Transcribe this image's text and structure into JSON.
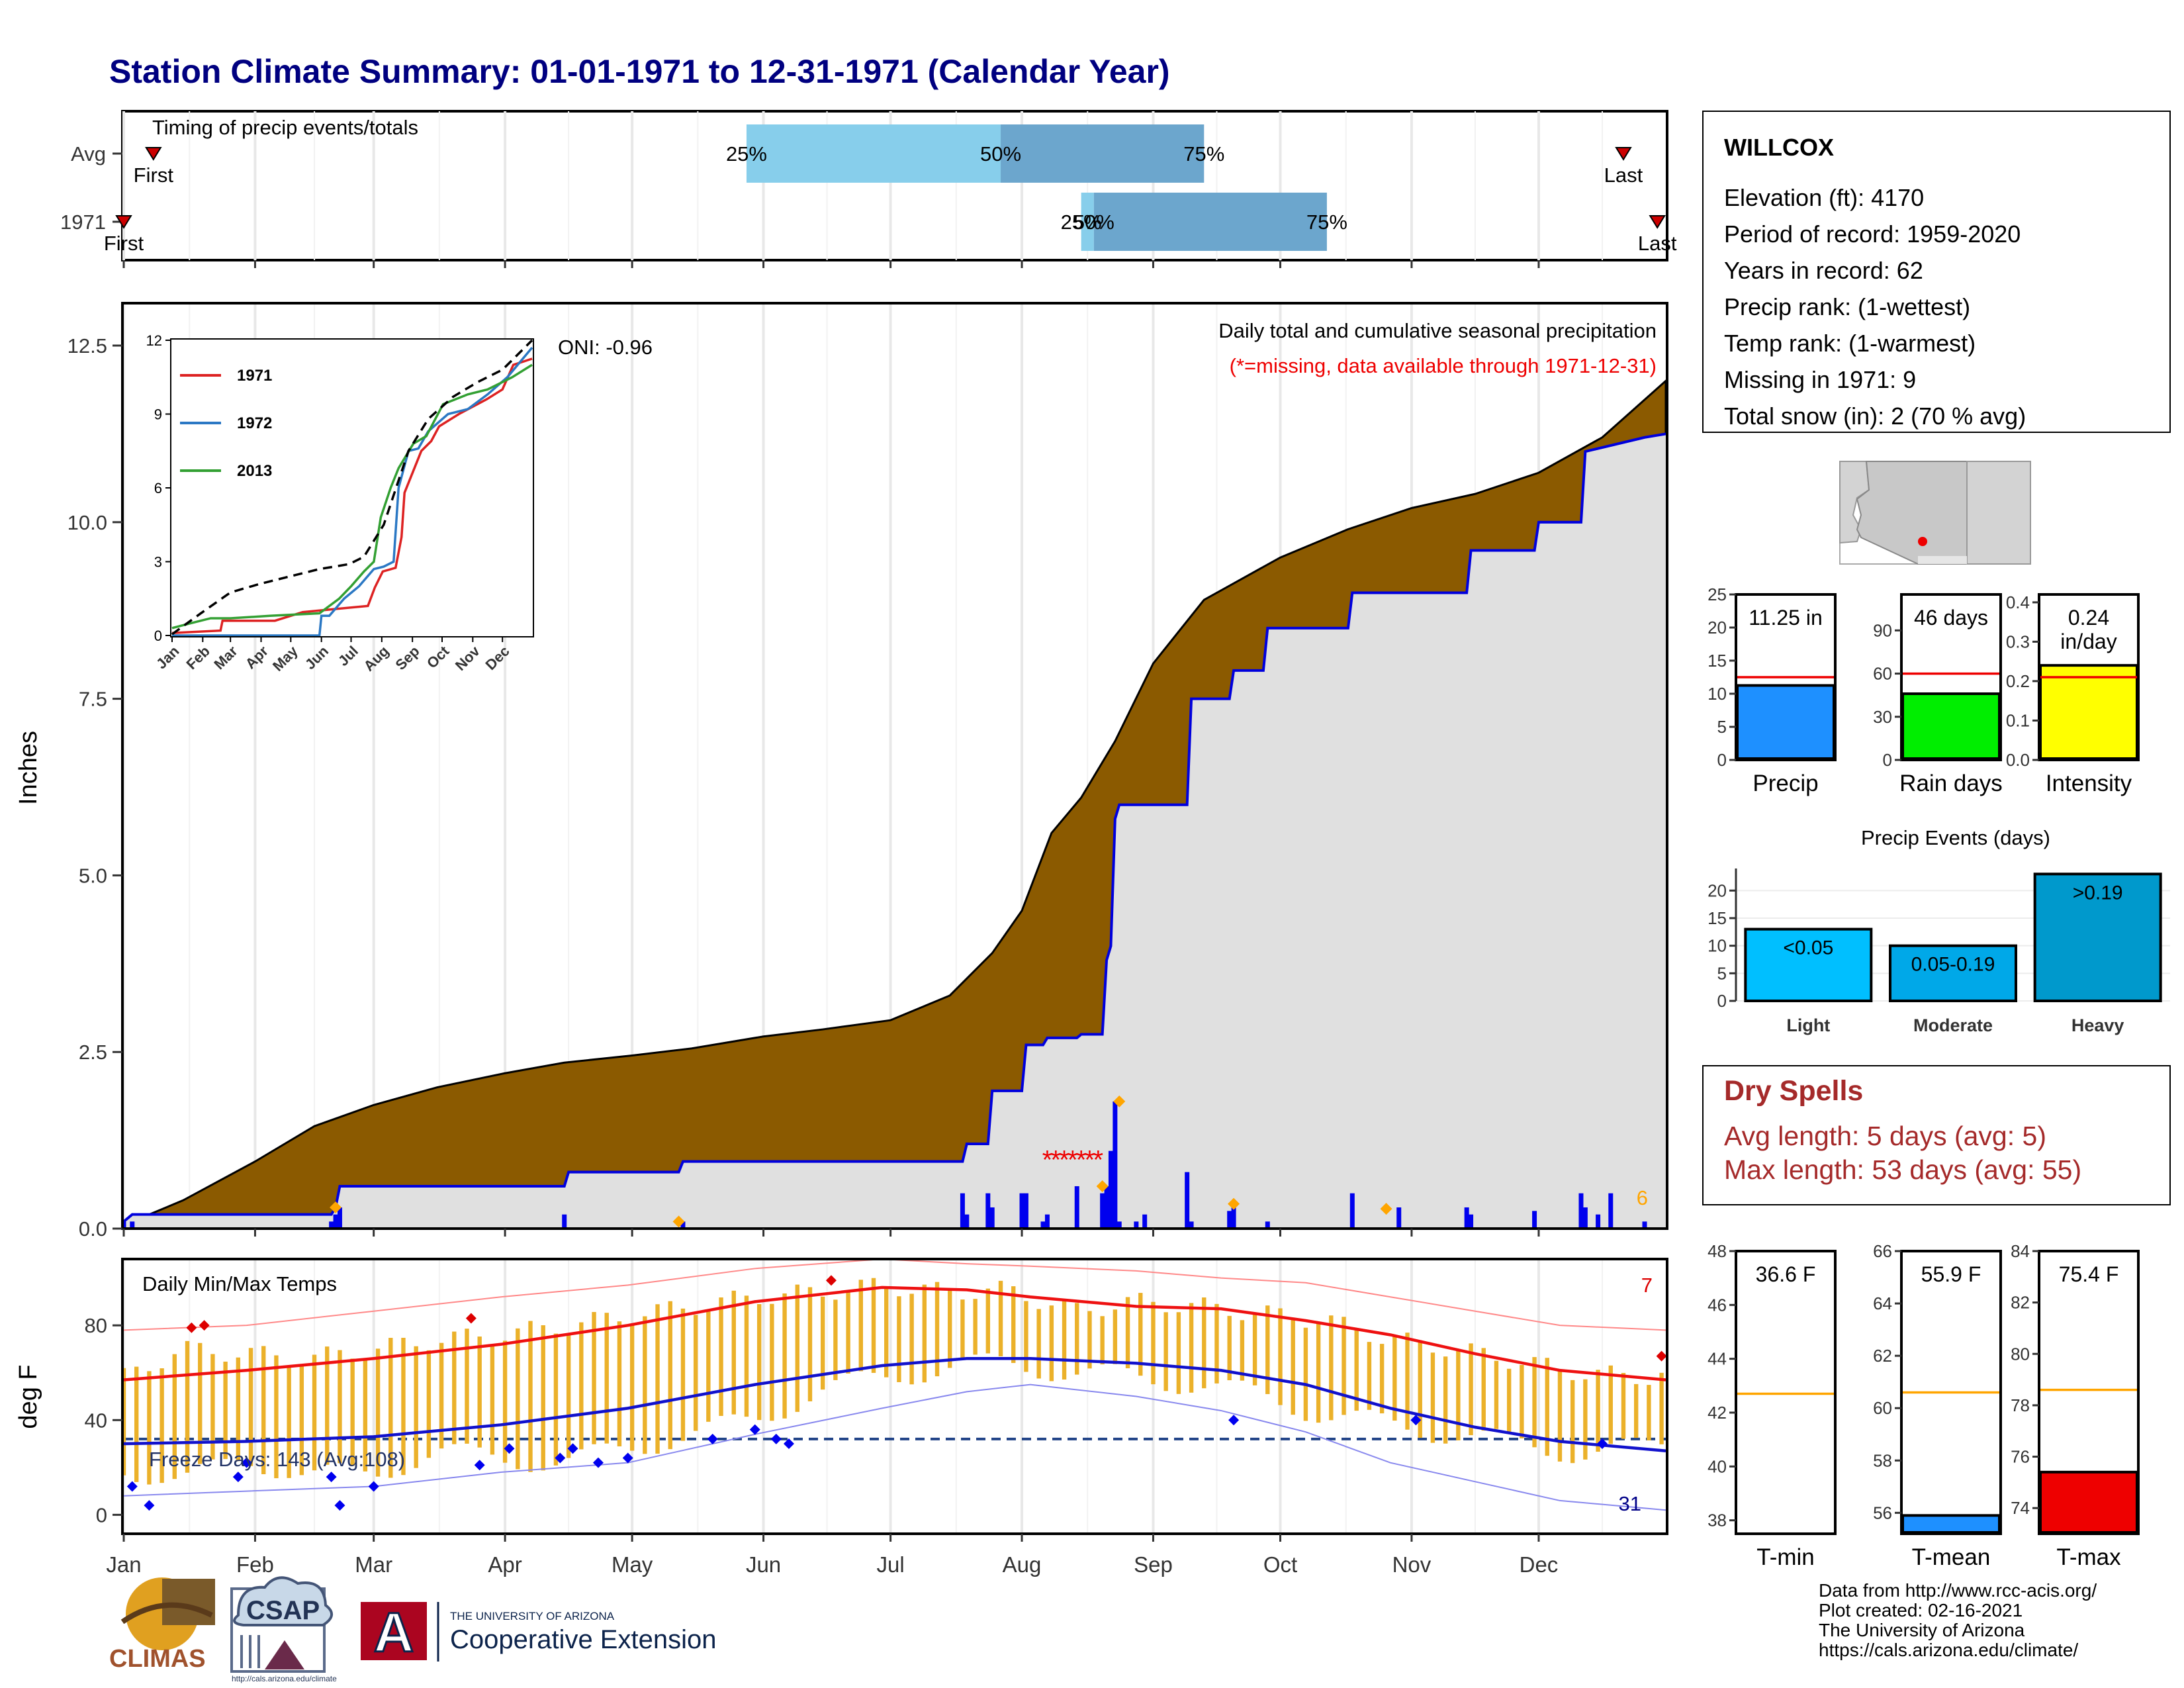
{
  "page": {
    "title": "Station Climate Summary: 01-01-1971 to 12-31-1971 (Calendar Year)"
  },
  "months": [
    "Jan",
    "Feb",
    "Mar",
    "Apr",
    "May",
    "Jun",
    "Jul",
    "Aug",
    "Sep",
    "Oct",
    "Nov",
    "Dec"
  ],
  "timing_panel": {
    "title": "Timing of precip events/totals",
    "rows": [
      {
        "label": "Avg",
        "first_label": "First",
        "last_label": "Last",
        "first_day": 8,
        "last_day": 355,
        "p25_day": 148,
        "p50_day": 208,
        "p75_day": 256,
        "p25_label": "25%",
        "p50_label": "50%",
        "p75_label": "75%"
      },
      {
        "label": "1971",
        "first_label": "First",
        "last_label": "Last",
        "first_day": 1,
        "last_day": 363,
        "p25_day": 227,
        "p50_day": 230,
        "p75_day": 285,
        "p25_label": "25%",
        "p50_label": "50%",
        "p75_label": "75%"
      }
    ],
    "colors": {
      "band_light": "#87ceeb",
      "band_dark": "#6ca6cd",
      "marker": "#cc0000"
    }
  },
  "chart_data": [
    {
      "type": "area",
      "name": "cumulative-precip",
      "title": "Daily total and cumulative seasonal precipitation",
      "subtitle": "(*=missing, data available through 1971-12-31)",
      "oni_label": "ONI: -0.96",
      "ylabel": "Inches",
      "ylim": [
        0,
        13.1
      ],
      "yticks": [
        0.0,
        2.5,
        5.0,
        7.5,
        10.0,
        12.5
      ],
      "ytick_labels": [
        "0.0",
        "2.5",
        "5.0",
        "7.5",
        "10.0",
        "12.5"
      ],
      "xlim_day": [
        1,
        365
      ],
      "avg_cumulative": {
        "x_day": [
          1,
          15,
          32,
          46,
          60,
          75,
          91,
          105,
          121,
          135,
          152,
          166,
          182,
          196,
          206,
          213,
          220,
          227,
          235,
          244,
          256,
          274,
          290,
          305,
          320,
          335,
          350,
          365
        ],
        "y": [
          0.05,
          0.4,
          0.95,
          1.45,
          1.75,
          2.0,
          2.2,
          2.35,
          2.45,
          2.55,
          2.72,
          2.82,
          2.95,
          3.3,
          3.9,
          4.5,
          5.6,
          6.1,
          6.9,
          8.0,
          8.9,
          9.5,
          9.9,
          10.2,
          10.4,
          10.7,
          11.2,
          12.0
        ]
      },
      "cum_1971": {
        "x_day": [
          1,
          3,
          50,
          51,
          52,
          105,
          106,
          132,
          133,
          199,
          200,
          205,
          206,
          213,
          214,
          218,
          219,
          226,
          227,
          232,
          233,
          234,
          235,
          236,
          252,
          253,
          262,
          263,
          270,
          271,
          290,
          291,
          318,
          319,
          334,
          335,
          345,
          346,
          360,
          365
        ],
        "y": [
          0.1,
          0.2,
          0.2,
          0.3,
          0.6,
          0.6,
          0.8,
          0.8,
          0.95,
          0.95,
          1.2,
          1.2,
          1.95,
          1.95,
          2.6,
          2.6,
          2.7,
          2.7,
          2.75,
          2.75,
          3.8,
          4.0,
          5.8,
          6.0,
          6.0,
          7.5,
          7.5,
          7.9,
          7.9,
          8.5,
          8.5,
          9.0,
          9.0,
          9.6,
          9.6,
          10.0,
          10.0,
          11.0,
          11.2,
          11.25
        ]
      },
      "daily_bars": {
        "x_day": [
          1,
          3,
          50,
          51,
          52,
          105,
          133,
          199,
          200,
          205,
          206,
          213,
          214,
          218,
          219,
          226,
          232,
          233,
          234,
          235,
          236,
          240,
          242,
          252,
          253,
          262,
          263,
          271,
          291,
          302,
          318,
          319,
          334,
          345,
          346,
          349,
          352,
          360
        ],
        "values": [
          0.1,
          0.1,
          0.1,
          0.2,
          0.3,
          0.2,
          0.1,
          0.5,
          0.2,
          0.5,
          0.3,
          0.5,
          0.5,
          0.1,
          0.2,
          0.6,
          0.5,
          0.6,
          1.1,
          1.8,
          0.1,
          0.1,
          0.2,
          0.8,
          0.1,
          0.25,
          0.3,
          0.1,
          0.5,
          0.3,
          0.3,
          0.2,
          0.25,
          0.5,
          0.3,
          0.2,
          0.5,
          0.1
        ]
      },
      "daily_markers": {
        "x_day": [
          51,
          132,
          232,
          236,
          263,
          299
        ],
        "y": [
          0.3,
          0.1,
          0.6,
          1.8,
          0.35,
          0.28
        ]
      },
      "missing_marks": {
        "x_day": [
          219,
          221,
          223,
          225,
          227,
          229,
          231
        ],
        "y": 1.0
      },
      "corner_value": "6",
      "colors": {
        "cum_fill": "#e0e0e0",
        "cum_line": "#0000dd",
        "avg_fill": "#8b5a00",
        "bar": "#0000ee",
        "marker": "#ffa500",
        "missing": "#ee0000"
      }
    },
    {
      "type": "line",
      "name": "inset-cumulative",
      "ylim": [
        0,
        12
      ],
      "yticks": [
        0,
        3,
        6,
        9,
        12
      ],
      "ytick_labels": [
        "0",
        "3",
        "6",
        "9",
        "12"
      ],
      "series": [
        {
          "name": "1971",
          "color": "#dd2222",
          "x_day": [
            1,
            50,
            52,
            105,
            133,
            199,
            206,
            214,
            227,
            233,
            236,
            253,
            263,
            271,
            291,
            319,
            335,
            346,
            365
          ],
          "y": [
            0.1,
            0.2,
            0.6,
            0.6,
            0.95,
            1.2,
            1.95,
            2.6,
            2.75,
            4.0,
            5.8,
            7.5,
            7.9,
            8.5,
            9.0,
            9.6,
            10.0,
            11.0,
            11.25
          ]
        },
        {
          "name": "1972",
          "color": "#2b78c4",
          "x_day": [
            1,
            150,
            152,
            160,
            175,
            190,
            205,
            215,
            225,
            230,
            240,
            250,
            260,
            280,
            300,
            320,
            340,
            365
          ],
          "y": [
            0.0,
            0.0,
            0.8,
            0.8,
            1.5,
            2.0,
            2.7,
            2.8,
            3.0,
            6.0,
            7.5,
            7.6,
            8.3,
            9.0,
            9.2,
            9.8,
            10.5,
            11.7
          ]
        },
        {
          "name": "2013",
          "color": "#33a033",
          "x_day": [
            1,
            20,
            40,
            60,
            100,
            150,
            170,
            182,
            195,
            205,
            212,
            222,
            230,
            245,
            258,
            275,
            300,
            320,
            345,
            365
          ],
          "y": [
            0.3,
            0.5,
            0.7,
            0.7,
            0.8,
            0.9,
            1.5,
            2.0,
            2.6,
            3.0,
            4.8,
            6.0,
            6.8,
            7.8,
            8.1,
            9.4,
            9.8,
            10.0,
            10.5,
            11.0
          ]
        }
      ],
      "avg": {
        "x_day": [
          1,
          30,
          60,
          90,
          120,
          150,
          180,
          195,
          215,
          240,
          260,
          285,
          310,
          335,
          365
        ],
        "y": [
          0.05,
          0.9,
          1.75,
          2.1,
          2.4,
          2.7,
          2.9,
          3.2,
          4.5,
          7.5,
          8.8,
          9.7,
          10.3,
          10.8,
          12.0
        ]
      }
    },
    {
      "type": "line",
      "name": "daily-temps",
      "title": "Daily Min/Max Temps",
      "ylabel": "deg F",
      "ylim": [
        -8,
        108
      ],
      "yticks": [
        0,
        40,
        80
      ],
      "ytick_labels": [
        "0",
        "40",
        "80"
      ],
      "freeze_label": "Freeze Days: 143 (Avg:108)",
      "freeze_line": 32,
      "max_record_count": "7",
      "min_record_count": "31",
      "normal_max": {
        "x_day": [
          1,
          30,
          60,
          90,
          120,
          150,
          180,
          200,
          215,
          240,
          260,
          280,
          300,
          320,
          340,
          365
        ],
        "y": [
          57,
          61,
          66,
          72,
          80,
          90,
          96,
          95,
          92,
          88,
          87,
          82,
          76,
          68,
          61,
          57
        ]
      },
      "normal_min": {
        "x_day": [
          1,
          30,
          60,
          90,
          120,
          150,
          180,
          200,
          215,
          240,
          260,
          280,
          300,
          320,
          340,
          365
        ],
        "y": [
          30,
          31,
          33,
          38,
          45,
          55,
          63,
          66,
          66,
          64,
          61,
          55,
          45,
          37,
          31,
          27
        ]
      },
      "record_max": {
        "x_day": [
          1,
          30,
          60,
          90,
          120,
          150,
          180,
          200,
          215,
          240,
          260,
          280,
          300,
          320,
          340,
          365
        ],
        "y": [
          78,
          80,
          86,
          92,
          97,
          104,
          108,
          106,
          105,
          103,
          100,
          98,
          92,
          86,
          80,
          78
        ]
      },
      "record_min": {
        "x_day": [
          1,
          30,
          60,
          90,
          120,
          150,
          180,
          200,
          215,
          240,
          260,
          280,
          300,
          320,
          340,
          365
        ],
        "y": [
          8,
          10,
          12,
          18,
          22,
          34,
          45,
          52,
          55,
          50,
          44,
          35,
          22,
          14,
          6,
          2
        ]
      },
      "obs_high": {
        "x_day": [
          1,
          15,
          30,
          45,
          60,
          75,
          90,
          105,
          120,
          135,
          150,
          165,
          180,
          195,
          210,
          225,
          240,
          255,
          270,
          285,
          300,
          315,
          330,
          345,
          360,
          365
        ],
        "y": [
          58,
          70,
          68,
          66,
          70,
          74,
          76,
          80,
          84,
          88,
          92,
          94,
          97,
          94,
          95,
          86,
          90,
          88,
          85,
          82,
          74,
          70,
          65,
          60,
          58,
          60
        ]
      },
      "obs_low": {
        "x_day": [
          1,
          15,
          30,
          45,
          60,
          75,
          90,
          105,
          120,
          135,
          150,
          165,
          180,
          195,
          210,
          225,
          240,
          255,
          270,
          285,
          300,
          315,
          330,
          345,
          360,
          365
        ],
        "y": [
          20,
          14,
          24,
          16,
          18,
          26,
          24,
          22,
          28,
          34,
          40,
          52,
          58,
          62,
          64,
          60,
          58,
          55,
          50,
          42,
          38,
          34,
          30,
          26,
          28,
          30
        ]
      },
      "record_high_days": {
        "x_day": [
          17,
          20,
          83,
          168,
          364
        ],
        "y": [
          79,
          80,
          83,
          99,
          67
        ]
      },
      "record_low_days": {
        "x_day": [
          3,
          7,
          28,
          30,
          50,
          52,
          60,
          85,
          92,
          104,
          107,
          113,
          120,
          140,
          150,
          155,
          158,
          263,
          306,
          350
        ],
        "y": [
          12,
          4,
          16,
          22,
          16,
          4,
          12,
          21,
          28,
          24,
          28,
          22,
          24,
          32,
          36,
          32,
          30,
          40,
          40,
          30
        ]
      },
      "colors": {
        "bars": "#ebb12a",
        "normal_max": "#ee1111",
        "normal_min": "#1111cc",
        "record_max": "#ff8888",
        "record_min": "#8888ee",
        "freeze": "#224488",
        "record_marker_high": "#dd0000",
        "record_marker_low": "#0000ee"
      }
    },
    {
      "type": "bar",
      "name": "precip-summary-bars",
      "panels": [
        {
          "label": "Precip",
          "value": 11.25,
          "value_label": "11.25 in",
          "normal": 12.5,
          "ylim": [
            0,
            25
          ],
          "yticks": [
            0,
            5,
            10,
            15,
            20,
            25
          ],
          "ytick_labels": [
            "0",
            "5",
            "10",
            "15",
            "20",
            "25"
          ],
          "color": "#1e90ff"
        },
        {
          "label": "Rain days",
          "value": 46,
          "value_label": "46 days",
          "normal": 60,
          "ylim": [
            0,
            115
          ],
          "yticks": [
            0,
            30,
            60,
            90
          ],
          "ytick_labels": [
            "0",
            "30",
            "60",
            "90"
          ],
          "color": "#00ee00"
        },
        {
          "label": "Intensity",
          "value": 0.24,
          "value_label": "0.24 in/day",
          "normal": 0.21,
          "ylim": [
            0,
            0.42
          ],
          "yticks": [
            0.0,
            0.1,
            0.2,
            0.3,
            0.4
          ],
          "ytick_labels": [
            "0.0",
            "0.1",
            "0.2",
            "0.3",
            "0.4"
          ],
          "color": "#ffff00"
        }
      ]
    },
    {
      "type": "bar",
      "name": "precip-events",
      "title": "Precip Events (days)",
      "categories": [
        "Light",
        "Moderate",
        "Heavy"
      ],
      "values": [
        13,
        10,
        23
      ],
      "bar_labels": [
        "<0.05",
        "0.05-0.19",
        ">0.19"
      ],
      "ylim": [
        0,
        24
      ],
      "yticks": [
        0,
        5,
        10,
        15,
        20
      ],
      "ytick_labels": [
        "0",
        "5",
        "10",
        "15",
        "20"
      ],
      "colors": [
        "#00bfff",
        "#00a8e8",
        "#0099cc"
      ]
    },
    {
      "type": "bar",
      "name": "temp-summary-bars",
      "panels": [
        {
          "label": "T-min",
          "value": 36.6,
          "value_label": "36.6 F",
          "normal": 42.7,
          "ylim": [
            37.5,
            48
          ],
          "yticks": [
            38,
            40,
            42,
            44,
            46,
            48
          ],
          "ytick_labels": [
            "38",
            "40",
            "42",
            "44",
            "46",
            "48"
          ],
          "color": "#aaaaaa"
        },
        {
          "label": "T-mean",
          "value": 55.9,
          "value_label": "55.9 F",
          "normal": 60.6,
          "ylim": [
            55.2,
            66
          ],
          "yticks": [
            56,
            58,
            60,
            62,
            64,
            66
          ],
          "ytick_labels": [
            "56",
            "58",
            "60",
            "62",
            "64",
            "66"
          ],
          "color": "#1e90ff"
        },
        {
          "label": "T-max",
          "value": 75.4,
          "value_label": "75.4 F",
          "normal": 78.6,
          "ylim": [
            73,
            84
          ],
          "yticks": [
            74,
            76,
            78,
            80,
            82,
            84
          ],
          "ytick_labels": [
            "74",
            "76",
            "78",
            "80",
            "82",
            "84"
          ],
          "color": "#ee0000"
        }
      ],
      "normal_color": "#ffa500"
    }
  ],
  "station": {
    "name": "WILLCOX",
    "lines": [
      "Elevation (ft): 4170",
      "Period of record: 1959-2020",
      "Years in record: 62",
      "Precip rank:  (1-wettest)",
      "Temp rank:  (1-warmest)",
      "Missing in 1971: 9",
      "Total snow (in): 2 (70 % avg)"
    ]
  },
  "dry_spells": {
    "title": "Dry Spells",
    "avg_line": "Avg length: 5 days (avg: 5)",
    "max_line": "Max length: 53 days (avg: 55)",
    "color": "#a52a2a"
  },
  "logos": {
    "climas": "CLIMAS",
    "csap": "CSAP",
    "csap_url": "http://cals.arizona.edu/climate",
    "ua_small": "THE UNIVERSITY OF ARIZONA",
    "ua_big": "Cooperative Extension",
    "ua_letter": "A"
  },
  "credits": [
    "Data from http://www.rcc-acis.org/",
    "Plot created: 02-16-2021",
    "The University of Arizona",
    "https://cals.arizona.edu/climate/"
  ]
}
